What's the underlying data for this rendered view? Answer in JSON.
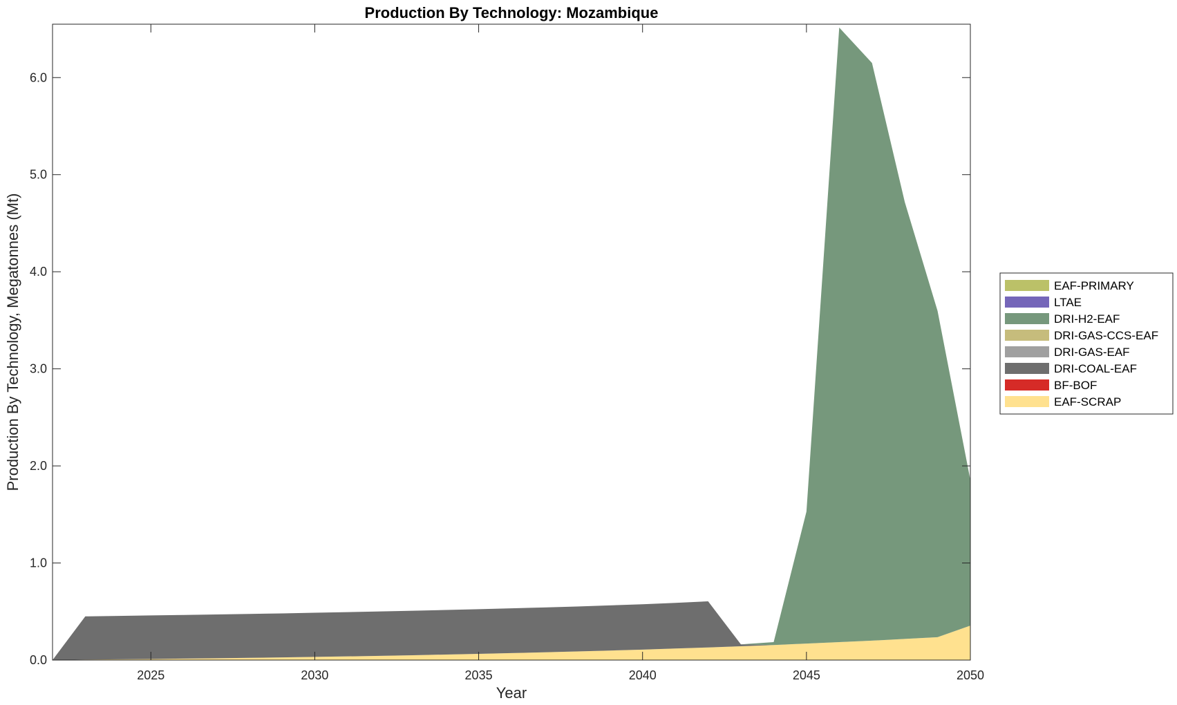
{
  "chart_data": {
    "type": "area",
    "stacked": true,
    "title": "Production By Technology: Mozambique",
    "xlabel": "Year",
    "ylabel": "Production By Technology, Megatonnes (Mt)",
    "xlim": [
      2022,
      2050
    ],
    "ylim": [
      0,
      6.55
    ],
    "xticks": [
      "2025",
      "2030",
      "2035",
      "2040",
      "2045",
      "2050"
    ],
    "yticks": [
      "0.0",
      "1.0",
      "2.0",
      "3.0",
      "4.0",
      "5.0",
      "6.0"
    ],
    "grid": false,
    "legend_position": "right",
    "x": [
      2022,
      2023,
      2024,
      2025,
      2026,
      2027,
      2028,
      2029,
      2030,
      2031,
      2032,
      2033,
      2034,
      2035,
      2036,
      2037,
      2038,
      2039,
      2040,
      2041,
      2042,
      2043,
      2044,
      2045,
      2046,
      2047,
      2048,
      2049,
      2050
    ],
    "series": [
      {
        "name": "EAF-SCRAP",
        "color": "#FFE18F",
        "values": [
          0,
          0.005,
          0.008,
          0.011,
          0.015,
          0.019,
          0.023,
          0.028,
          0.033,
          0.038,
          0.044,
          0.05,
          0.057,
          0.064,
          0.072,
          0.08,
          0.089,
          0.098,
          0.108,
          0.119,
          0.13,
          0.142,
          0.155,
          0.17,
          0.185,
          0.2,
          0.218,
          0.236,
          0.355
        ]
      },
      {
        "name": "BF-BOF",
        "color": "#D62B27",
        "values": [
          0,
          0,
          0,
          0,
          0,
          0,
          0,
          0,
          0,
          0,
          0,
          0,
          0,
          0,
          0,
          0,
          0,
          0,
          0,
          0,
          0,
          0,
          0,
          0,
          0,
          0,
          0,
          0,
          0
        ]
      },
      {
        "name": "DRI-COAL-EAF",
        "color": "#6E6E6E",
        "values": [
          0,
          0.445,
          0.447,
          0.449,
          0.45,
          0.451,
          0.452,
          0.453,
          0.455,
          0.456,
          0.457,
          0.458,
          0.459,
          0.46,
          0.461,
          0.462,
          0.463,
          0.465,
          0.467,
          0.47,
          0.475,
          0.02,
          0,
          0,
          0,
          0,
          0,
          0,
          0
        ]
      },
      {
        "name": "DRI-GAS-EAF",
        "color": "#A0A0A0",
        "values": [
          0,
          0,
          0,
          0,
          0,
          0,
          0,
          0,
          0,
          0,
          0,
          0,
          0,
          0,
          0,
          0,
          0,
          0,
          0,
          0,
          0,
          0,
          0,
          0,
          0,
          0,
          0,
          0,
          0
        ]
      },
      {
        "name": "DRI-GAS-CCS-EAF",
        "color": "#C6BC7C",
        "values": [
          0,
          0,
          0,
          0,
          0,
          0,
          0,
          0,
          0,
          0,
          0,
          0,
          0,
          0,
          0,
          0,
          0,
          0,
          0,
          0,
          0,
          0,
          0,
          0,
          0,
          0,
          0,
          0,
          0
        ]
      },
      {
        "name": "DRI-H2-EAF",
        "color": "#76987C",
        "values": [
          0,
          0,
          0,
          0,
          0,
          0,
          0,
          0,
          0,
          0,
          0,
          0,
          0,
          0,
          0,
          0,
          0,
          0,
          0,
          0,
          0,
          0,
          0.03,
          1.36,
          6.33,
          5.95,
          4.5,
          3.36,
          1.5
        ]
      },
      {
        "name": "LTAE",
        "color": "#7566B9",
        "values": [
          0,
          0,
          0,
          0,
          0,
          0,
          0,
          0,
          0,
          0,
          0,
          0,
          0,
          0,
          0,
          0,
          0,
          0,
          0,
          0,
          0,
          0,
          0,
          0,
          0,
          0,
          0,
          0,
          0
        ]
      },
      {
        "name": "EAF-PRIMARY",
        "color": "#BBC168",
        "values": [
          0,
          0,
          0,
          0,
          0,
          0,
          0,
          0,
          0,
          0,
          0,
          0,
          0,
          0,
          0,
          0,
          0,
          0,
          0,
          0,
          0,
          0,
          0,
          0,
          0,
          0,
          0,
          0,
          0
        ]
      }
    ]
  }
}
